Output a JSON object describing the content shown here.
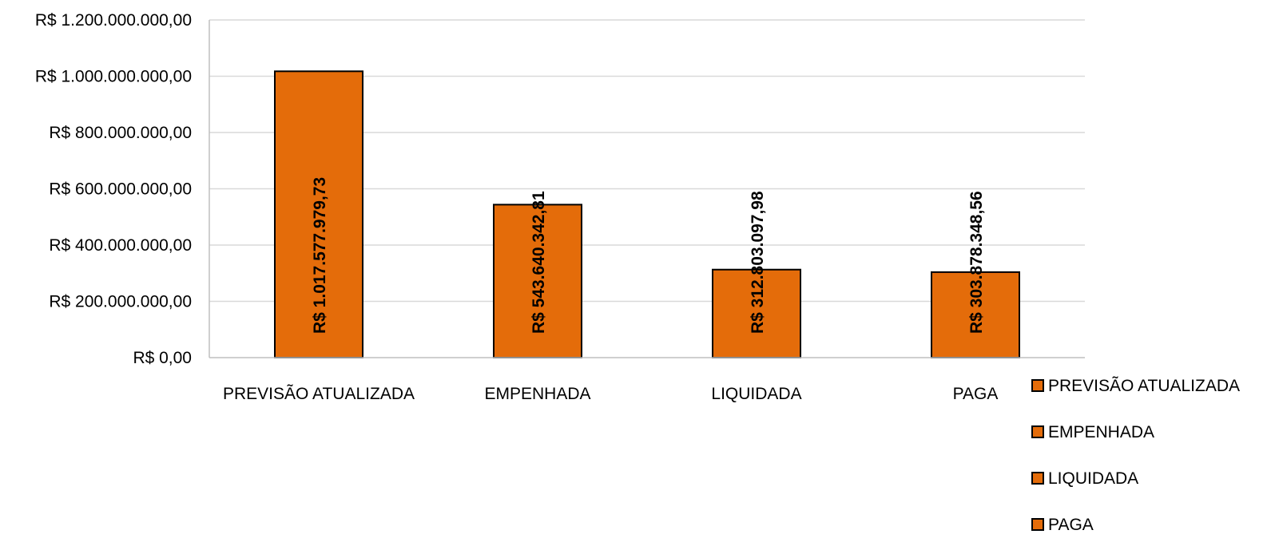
{
  "chart_data": {
    "type": "bar",
    "title": "",
    "xlabel": "",
    "ylabel": "",
    "categories": [
      "PREVISÃO ATUALIZADA",
      "EMPENHADA",
      "LIQUIDADA",
      "PAGA"
    ],
    "values": [
      1017577979.73,
      543640342.81,
      312803097.98,
      303878348.56
    ],
    "data_labels": [
      "R$ 1.017.577.979,73",
      "R$ 543.640.342,81",
      "R$ 312.803.097,98",
      "R$ 303.878.348,56"
    ],
    "ylim": [
      0,
      1200000000
    ],
    "y_ticks": [
      0,
      200000000,
      400000000,
      600000000,
      800000000,
      1000000000,
      1200000000
    ],
    "y_tick_labels": [
      "R$ 0,00",
      "R$ 200.000.000,00",
      "R$ 400.000.000,00",
      "R$ 600.000.000,00",
      "R$ 800.000.000,00",
      "R$ 1.000.000.000,00",
      "R$ 1.200.000.000,00"
    ],
    "grid": true,
    "legend": {
      "position": "right",
      "entries": [
        "PREVISÃO ATUALIZADA",
        "EMPENHADA",
        "LIQUIDADA",
        "PAGA"
      ]
    },
    "colors": {
      "bar_fill": "#E46C0A",
      "bar_stroke": "#000000",
      "grid": "#D9D9D9",
      "axis": "#BFBFBF"
    }
  }
}
